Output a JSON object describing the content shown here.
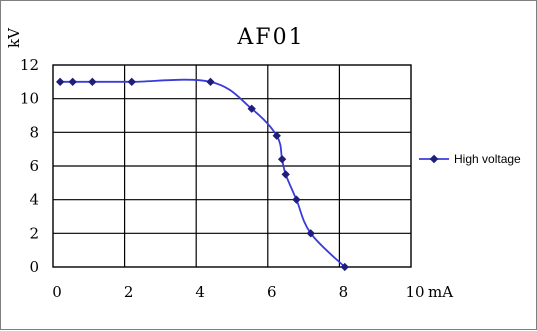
{
  "chart_data": {
    "type": "line",
    "title": "AF01",
    "ylabel": "kV",
    "xlabel": "mA",
    "xlim": [
      0,
      10
    ],
    "ylim": [
      0,
      12
    ],
    "x_ticks": [
      0,
      2,
      4,
      6,
      8,
      10
    ],
    "y_ticks": [
      0,
      2,
      4,
      6,
      8,
      10,
      12
    ],
    "grid": true,
    "legend_position": "right",
    "series": [
      {
        "name": "High voltage",
        "color": "#3b3bdb",
        "marker": "diamond",
        "x": [
          0.2,
          0.55,
          1.1,
          2.2,
          4.4,
          5.55,
          6.25,
          6.4,
          6.5,
          6.8,
          7.2,
          8.15
        ],
        "y": [
          11,
          11,
          11,
          11,
          11,
          9.4,
          7.8,
          6.4,
          5.5,
          4,
          2,
          0
        ]
      }
    ]
  }
}
